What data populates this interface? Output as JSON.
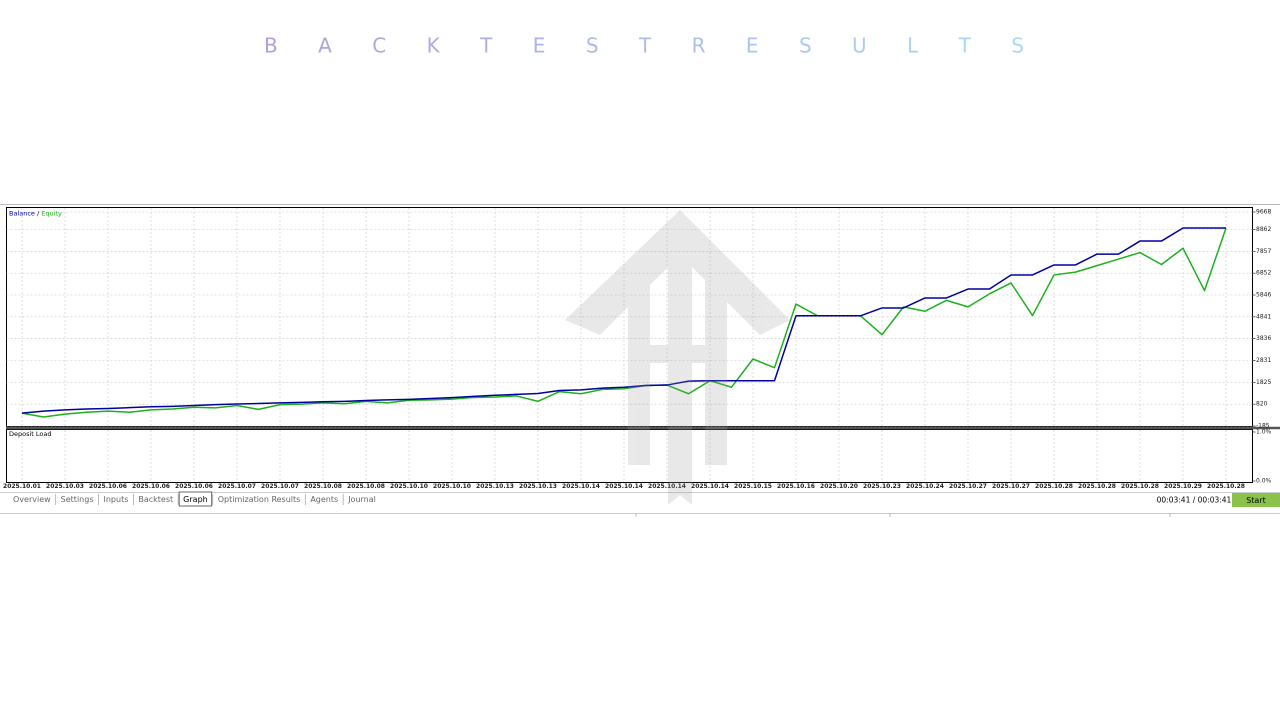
{
  "title": "B A C K T E S T R E S U L T S",
  "chart_data": [
    {
      "type": "line",
      "legend_separator": " / ",
      "categories": [
        "2025.10.01",
        null,
        "2025.10.03",
        null,
        "2025.10.06",
        null,
        "2025.10.06",
        null,
        "2025.10.06",
        null,
        "2025.10.07",
        null,
        "2025.10.07",
        null,
        "2025.10.08",
        null,
        "2025.10.08",
        null,
        "2025.10.10",
        null,
        "2025.10.10",
        null,
        "2025.10.13",
        null,
        "2025.10.13",
        null,
        "2025.10.14",
        null,
        "2025.10.14",
        null,
        "2025.10.14",
        null,
        "2025.10.14",
        null,
        "2025.10.15",
        null,
        "2025.10.16",
        null,
        "2025.10.20",
        null,
        "2025.10.23",
        null,
        "2025.10.24",
        null,
        "2025.10.27",
        null,
        "2025.10.27",
        null,
        "2025.10.28",
        null,
        "2025.10.28",
        null,
        "2025.10.28",
        null,
        "2025.10.29",
        null,
        "2025.10.28"
      ],
      "series": [
        {
          "name": "Balance",
          "color": "#0000a0",
          "values": [
            410,
            500,
            560,
            600,
            620,
            660,
            700,
            720,
            760,
            800,
            830,
            850,
            880,
            900,
            930,
            950,
            990,
            1020,
            1040,
            1080,
            1120,
            1180,
            1230,
            1270,
            1310,
            1450,
            1480,
            1560,
            1600,
            1680,
            1700,
            1880,
            1900,
            1900,
            1900,
            1900,
            4890,
            4890,
            4890,
            4890,
            5250,
            5250,
            5710,
            5710,
            6120,
            6120,
            6770,
            6770,
            7230,
            7230,
            7730,
            7730,
            8330,
            8330,
            8930,
            8930,
            8930
          ]
        },
        {
          "name": "Equity",
          "color": "#1db11d",
          "values": [
            410,
            230,
            360,
            450,
            500,
            450,
            560,
            600,
            680,
            650,
            760,
            580,
            800,
            820,
            880,
            840,
            950,
            880,
            1000,
            1020,
            1050,
            1130,
            1150,
            1200,
            950,
            1400,
            1300,
            1500,
            1530,
            1680,
            1700,
            1300,
            1900,
            1600,
            2900,
            2500,
            5430,
            4890,
            4890,
            4890,
            4020,
            5300,
            5100,
            5600,
            5300,
            5900,
            6400,
            4900,
            6770,
            6900,
            7200,
            7500,
            7800,
            7250,
            8000,
            6050,
            8930
          ]
        }
      ],
      "ylim": [
        -185,
        9668
      ],
      "yticks": [
        -185,
        820,
        1825,
        2831,
        3836,
        4841,
        5846,
        6852,
        7857,
        8862,
        9668
      ],
      "grid": true
    },
    {
      "type": "panel",
      "title": "Deposit Load",
      "ylim": [
        0,
        1
      ],
      "yticks": [
        {
          "value": 0,
          "label": "0.0%"
        },
        {
          "value": 1,
          "label": "1.0%"
        }
      ],
      "grid": true
    }
  ],
  "tabs": [
    "Overview",
    "Settings",
    "Inputs",
    "Backtest",
    "Graph",
    "Optimization Results",
    "Agents",
    "Journal"
  ],
  "active_tab": 4,
  "timer": "00:03:41 / 00:03:41",
  "button": "Start"
}
